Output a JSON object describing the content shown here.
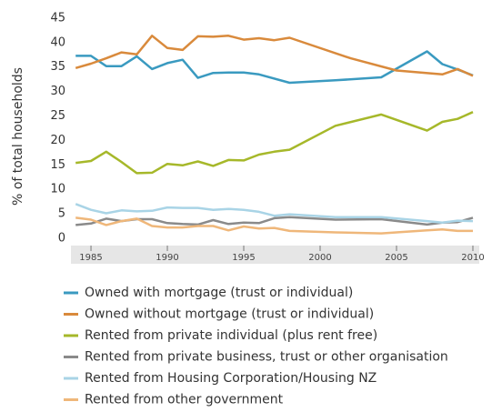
{
  "chart_data": {
    "type": "line",
    "y_label": "% of total households",
    "xlim": [
      1983.7,
      2010.4
    ],
    "ylim": [
      -1.5,
      46
    ],
    "xticks": [
      1985,
      1990,
      1995,
      2000,
      2005,
      2010
    ],
    "yticks": [
      0,
      5,
      10,
      15,
      20,
      25,
      30,
      35,
      40,
      45
    ],
    "grid": false,
    "legend": "bottom",
    "series": [
      {
        "name": "Owned with mortgage (trust or individual)",
        "color": "#3a9ac0",
        "x": [
          1984,
          1985,
          1986,
          1987,
          1988,
          1989,
          1990,
          1991,
          1992,
          1993,
          1994,
          1995,
          1996,
          1998,
          2001,
          2004,
          2007,
          2008,
          2009,
          2010
        ],
        "values": [
          37.3,
          37.3,
          35.2,
          35.2,
          37.2,
          34.6,
          35.8,
          36.5,
          32.8,
          33.8,
          33.9,
          33.9,
          33.5,
          31.8,
          32.3,
          32.9,
          38.2,
          35.6,
          34.5,
          33.3
        ]
      },
      {
        "name": "Owned without mortgage (trust or individual)",
        "color": "#d98a3c",
        "x": [
          1984,
          1985,
          1986,
          1987,
          1988,
          1989,
          1990,
          1991,
          1992,
          1993,
          1994,
          1995,
          1996,
          1997,
          1998,
          2002,
          2005,
          2008,
          2009,
          2010
        ],
        "values": [
          34.8,
          35.7,
          36.8,
          38.0,
          37.6,
          41.4,
          38.9,
          38.5,
          41.3,
          41.2,
          41.4,
          40.6,
          40.9,
          40.5,
          41.0,
          36.8,
          34.3,
          33.5,
          34.6,
          33.2
        ]
      },
      {
        "name": "Rented from private individual (plus rent free)",
        "color": "#a6b82a",
        "x": [
          1984,
          1985,
          1986,
          1987,
          1988,
          1989,
          1990,
          1991,
          1992,
          1993,
          1994,
          1995,
          1996,
          1997,
          1998,
          2001,
          2004,
          2007,
          2008,
          2009,
          2010
        ],
        "values": [
          15.4,
          15.8,
          17.7,
          15.6,
          13.3,
          13.4,
          15.2,
          14.9,
          15.7,
          14.8,
          16.0,
          15.9,
          17.1,
          17.7,
          18.1,
          23.0,
          25.3,
          22.0,
          23.8,
          24.4,
          25.8
        ]
      },
      {
        "name": "Rented from private business, trust or other organisation",
        "color": "#8a8a8a",
        "x": [
          1984,
          1985,
          1986,
          1987,
          1988,
          1989,
          1990,
          1991,
          1992,
          1993,
          1994,
          1995,
          1996,
          1997,
          1998,
          2001,
          2004,
          2007,
          2008,
          2009,
          2010
        ],
        "values": [
          2.7,
          3.0,
          4.0,
          3.5,
          3.9,
          3.9,
          3.1,
          2.9,
          2.8,
          3.7,
          2.9,
          3.2,
          3.1,
          4.1,
          4.3,
          3.8,
          3.9,
          2.8,
          3.2,
          3.3,
          4.2
        ]
      },
      {
        "name": "Rented from Housing Corporation/Housing NZ",
        "color": "#a9d4e6",
        "x": [
          1984,
          1985,
          1986,
          1987,
          1988,
          1989,
          1990,
          1991,
          1992,
          1993,
          1994,
          1995,
          1996,
          1997,
          1998,
          2001,
          2004,
          2007,
          2008,
          2009,
          2010
        ],
        "values": [
          7.0,
          5.8,
          5.1,
          5.7,
          5.5,
          5.6,
          6.3,
          6.2,
          6.2,
          5.8,
          6.0,
          5.8,
          5.4,
          4.6,
          4.9,
          4.3,
          4.3,
          3.5,
          3.2,
          3.6,
          3.5
        ]
      },
      {
        "name": "Rented from other government",
        "color": "#efb77a",
        "x": [
          1984,
          1985,
          1986,
          1987,
          1988,
          1989,
          1990,
          1991,
          1992,
          1993,
          1994,
          1995,
          1996,
          1997,
          1998,
          2001,
          2004,
          2007,
          2008,
          2009,
          2010
        ],
        "values": [
          4.2,
          3.8,
          2.7,
          3.5,
          4.0,
          2.5,
          2.2,
          2.2,
          2.5,
          2.5,
          1.6,
          2.4,
          2.0,
          2.1,
          1.5,
          1.2,
          1.0,
          1.6,
          1.8,
          1.5,
          1.5
        ]
      }
    ]
  }
}
